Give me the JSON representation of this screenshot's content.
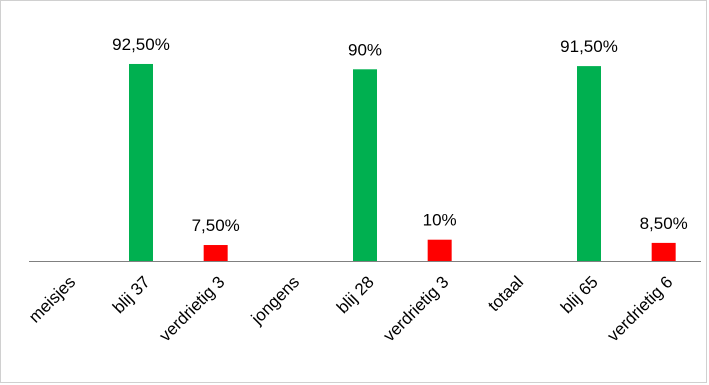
{
  "chart_data": {
    "type": "bar",
    "categories": [
      "meisjes",
      "blij 37",
      "verdrietig 3",
      "jongens",
      "blij 28",
      "verdrietig 3",
      "totaal",
      "blij 65",
      "verdrietig 6"
    ],
    "values": [
      null,
      92.5,
      7.5,
      null,
      90,
      10,
      null,
      91.5,
      8.5
    ],
    "data_labels": [
      "",
      "92,50%",
      "7,50%",
      "",
      "90%",
      "10%",
      "",
      "91,50%",
      "8,50%"
    ],
    "bar_colors": [
      "",
      "#00b050",
      "#ff0000",
      "",
      "#00b050",
      "#ff0000",
      "",
      "#00b050",
      "#ff0000"
    ],
    "ylim": [
      0,
      100
    ],
    "grid": false,
    "legend": "none"
  }
}
